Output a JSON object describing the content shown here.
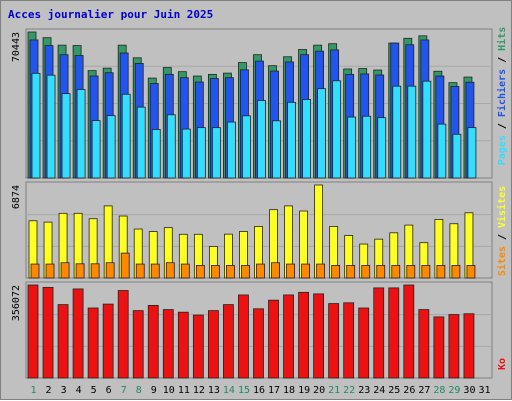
{
  "title": "Acces journalier pour Juin 2025",
  "colors": {
    "title": "#0000cc",
    "background": "#c0c0c0",
    "grid": "#a8a8a8",
    "hits": "#339966",
    "fichiers": "#2255ee",
    "pages": "#33ddff",
    "visites": "#ffff22",
    "sites": "#ff8800",
    "ko": "#ee1111",
    "weekend_label": "#228866",
    "weekday_label": "#000000",
    "separator": "#000000"
  },
  "chart_data": [
    {
      "type": "bar",
      "panel": "pages-fichiers-hits",
      "y_max_label": "70443",
      "ylim": [
        0,
        70443
      ],
      "x": [
        "1",
        "2",
        "3",
        "4",
        "5",
        "6",
        "7",
        "8",
        "9",
        "10",
        "11",
        "12",
        "13",
        "14",
        "15",
        "16",
        "17",
        "18",
        "19",
        "20",
        "21",
        "22",
        "23",
        "24",
        "25",
        "26",
        "27",
        "28",
        "29",
        "30",
        "31"
      ],
      "series": [
        {
          "name": "Hits",
          "values": [
            70443,
            67700,
            64100,
            63900,
            51800,
            53000,
            64100,
            58000,
            48200,
            53300,
            51300,
            49200,
            50000,
            50600,
            55700,
            59500,
            54200,
            58500,
            62000,
            64100,
            64800,
            52600,
            52800,
            52100,
            65100,
            67400,
            68600,
            51500,
            46000,
            48700,
            0
          ]
        },
        {
          "name": "Fichiers",
          "values": [
            66600,
            63900,
            59500,
            59100,
            49200,
            50800,
            60300,
            55300,
            45600,
            50000,
            48400,
            46300,
            48000,
            48400,
            52200,
            56400,
            51600,
            56000,
            59500,
            61200,
            61800,
            50000,
            50200,
            49700,
            65100,
            64300,
            66600,
            49200,
            44200,
            46200,
            0
          ]
        },
        {
          "name": "Pages",
          "values": [
            50500,
            49600,
            40700,
            42700,
            27700,
            30100,
            40400,
            34200,
            23400,
            30500,
            23600,
            24300,
            24300,
            27000,
            30000,
            37400,
            27600,
            36500,
            37900,
            43100,
            46900,
            29400,
            29800,
            29100,
            44300,
            44300,
            46700,
            26000,
            21100,
            24300,
            0
          ]
        }
      ],
      "yTitle_parts": [
        "Pages",
        "Fichiers",
        "Hits"
      ]
    },
    {
      "type": "bar",
      "panel": "visites-sites",
      "y_max_label": "6874",
      "ylim": [
        0,
        6874
      ],
      "x": [
        "1",
        "2",
        "3",
        "4",
        "5",
        "6",
        "7",
        "8",
        "9",
        "10",
        "11",
        "12",
        "13",
        "14",
        "15",
        "16",
        "17",
        "18",
        "19",
        "20",
        "21",
        "22",
        "23",
        "24",
        "25",
        "26",
        "27",
        "28",
        "29",
        "30",
        "31"
      ],
      "series": [
        {
          "name": "Visites",
          "values": [
            4230,
            4130,
            4780,
            4780,
            4380,
            5330,
            4580,
            3620,
            3430,
            3720,
            3230,
            3230,
            2330,
            3240,
            3440,
            3810,
            5050,
            5330,
            4950,
            6874,
            3810,
            3140,
            2510,
            2870,
            3340,
            3910,
            2610,
            4330,
            4010,
            4820,
            0
          ]
        },
        {
          "name": "Sites",
          "values": [
            1030,
            1030,
            1130,
            1050,
            1050,
            1130,
            1840,
            1030,
            1030,
            1130,
            1030,
            930,
            930,
            930,
            930,
            1030,
            1130,
            1030,
            1030,
            1030,
            930,
            930,
            930,
            930,
            930,
            930,
            930,
            930,
            930,
            930,
            0
          ]
        }
      ],
      "yTitle_parts": [
        "Sites",
        "Visites"
      ]
    },
    {
      "type": "bar",
      "panel": "ko",
      "y_max_label": "356072",
      "ylim": [
        0,
        356072
      ],
      "x": [
        "1",
        "2",
        "3",
        "4",
        "5",
        "6",
        "7",
        "8",
        "9",
        "10",
        "11",
        "12",
        "13",
        "14",
        "15",
        "16",
        "17",
        "18",
        "19",
        "20",
        "21",
        "22",
        "23",
        "24",
        "25",
        "26",
        "27",
        "28",
        "29",
        "30",
        "31"
      ],
      "series": [
        {
          "name": "Ko",
          "values": [
            356072,
            347000,
            281000,
            341000,
            268000,
            283000,
            335000,
            258000,
            278000,
            262000,
            252000,
            241000,
            258000,
            281000,
            318000,
            265000,
            298000,
            318000,
            328000,
            322000,
            285000,
            288000,
            268000,
            345000,
            345000,
            356072,
            262000,
            234000,
            243000,
            246000,
            0
          ]
        }
      ],
      "yTitle_parts": [
        "Ko"
      ]
    }
  ],
  "weekend_days": [
    1,
    7,
    8,
    14,
    15,
    21,
    22,
    28,
    29
  ]
}
